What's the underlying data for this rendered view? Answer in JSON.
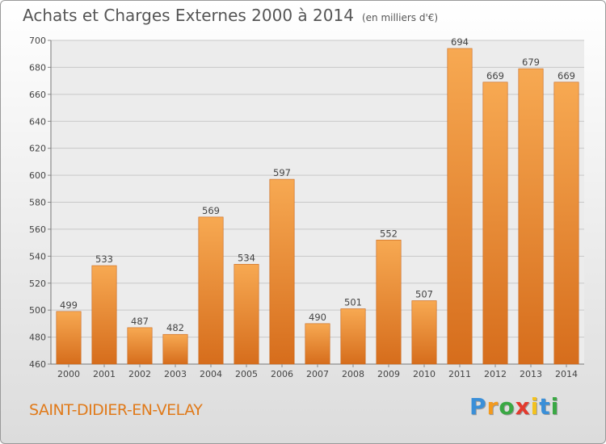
{
  "title": "Achats et Charges Externes 2000 à 2014",
  "unit": "(en milliers d'€)",
  "city": "SAINT-DIDIER-EN-VELAY",
  "brand": "Proxiti",
  "colors": {
    "bar_light": "#f6a550",
    "bar_dark": "#d9701e",
    "city": "#e07a1a"
  },
  "chart_data": {
    "type": "bar",
    "categories": [
      "2000",
      "2001",
      "2002",
      "2003",
      "2004",
      "2005",
      "2006",
      "2007",
      "2008",
      "2009",
      "2010",
      "2011",
      "2012",
      "2013",
      "2014"
    ],
    "values": [
      499,
      533,
      487,
      482,
      569,
      534,
      597,
      490,
      501,
      552,
      507,
      694,
      669,
      679,
      669
    ],
    "data_labels": [
      "499",
      "533",
      "487",
      "482",
      "569",
      "534",
      "597",
      "490",
      "501",
      "552",
      "507",
      "694",
      "669",
      "679",
      "669"
    ],
    "yticks": [
      "460",
      "480",
      "500",
      "520",
      "540",
      "560",
      "580",
      "600",
      "620",
      "640",
      "660",
      "680",
      "700"
    ],
    "ylim": [
      460,
      700
    ],
    "grid": true,
    "title": "Achats et Charges Externes 2000 à 2014",
    "xlabel": "",
    "ylabel": ""
  }
}
